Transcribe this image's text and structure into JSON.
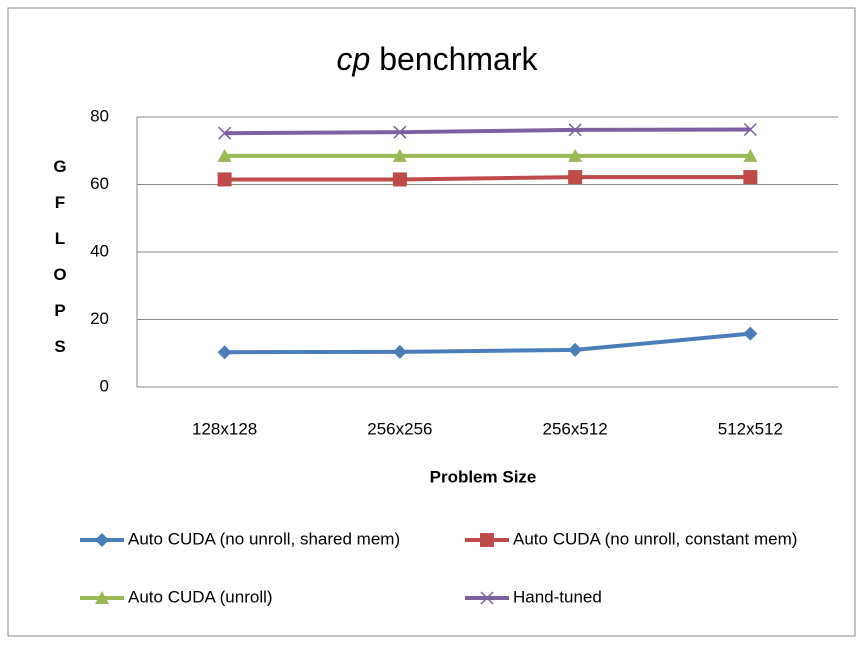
{
  "chart_data": {
    "type": "line",
    "title": "cp benchmark",
    "y_label": "GFLOPS",
    "x_label": "Problem Size",
    "categories": [
      "128x128",
      "256x256",
      "256x512",
      "512x512"
    ],
    "series": [
      {
        "name": "Auto CUDA (no unroll, shared mem)",
        "color": "#4a7ebb",
        "marker": "diamond",
        "values": [
          10.3,
          10.4,
          11,
          15.8
        ]
      },
      {
        "name": "Auto CUDA (no unroll, constant mem)",
        "color": "#be4b48",
        "marker": "square",
        "values": [
          61.5,
          61.5,
          62.2,
          62.2
        ]
      },
      {
        "name": "Auto CUDA (unroll)",
        "color": "#98b954",
        "marker": "triangle",
        "values": [
          68.5,
          68.5,
          68.5,
          68.5
        ]
      },
      {
        "name": "Hand-tuned",
        "color": "#7d60a0",
        "marker": "x",
        "values": [
          75.2,
          75.5,
          76.2,
          76.3
        ]
      }
    ],
    "ylim": [
      0,
      80
    ],
    "yticks": [
      0,
      20,
      40,
      60,
      80
    ],
    "grid": true,
    "legend": "bottom"
  }
}
